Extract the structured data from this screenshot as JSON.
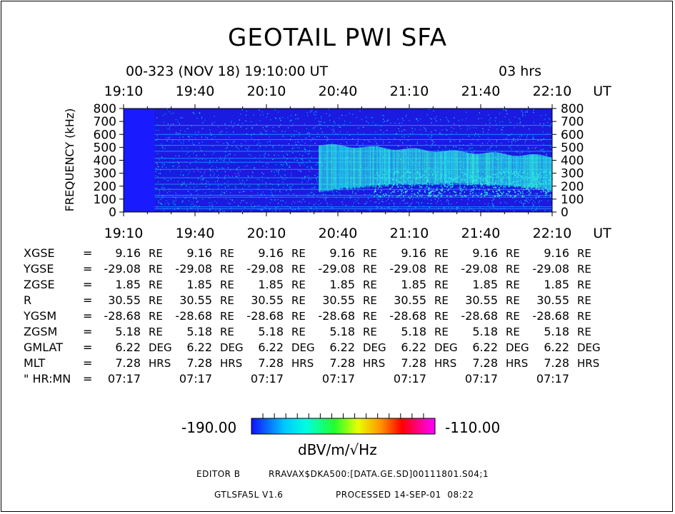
{
  "title": "GEOTAIL PWI SFA",
  "header": {
    "date": "00-323 (NOV 18) 19:10:00 UT",
    "duration": "03 hrs"
  },
  "chart_data": {
    "type": "heatmap",
    "title": "GEOTAIL PWI SFA",
    "ylabel": "FREQUENCY (kHz)",
    "x_unit": "UT",
    "x_ticks": [
      "19:10",
      "19:40",
      "20:10",
      "20:40",
      "21:10",
      "21:40",
      "22:10"
    ],
    "y_ticks": [
      0,
      100,
      200,
      300,
      400,
      500,
      600,
      700,
      800
    ],
    "ylim": [
      0,
      800
    ],
    "colorbar": {
      "min": "-190.00",
      "max": "-110.00",
      "unit": "dBV/m/√Hz"
    },
    "features": [
      {
        "name": "data gap",
        "start": "19:10",
        "end": "19:23"
      },
      {
        "name": "emission band",
        "start": "20:32",
        "end": "22:10",
        "freq_khz": [
          150,
          500
        ]
      }
    ]
  },
  "orbit": [
    {
      "label": "XGSE",
      "values": [
        "9.16",
        "9.16",
        "9.16",
        "9.16",
        "9.16",
        "9.16",
        "9.16"
      ],
      "unit": "RE"
    },
    {
      "label": "YGSE",
      "values": [
        "-29.08",
        "-29.08",
        "-29.08",
        "-29.08",
        "-29.08",
        "-29.08",
        "-29.08"
      ],
      "unit": "RE"
    },
    {
      "label": "ZGSE",
      "values": [
        "1.85",
        "1.85",
        "1.85",
        "1.85",
        "1.85",
        "1.85",
        "1.85"
      ],
      "unit": "RE"
    },
    {
      "label": "R",
      "values": [
        "30.55",
        "30.55",
        "30.55",
        "30.55",
        "30.55",
        "30.55",
        "30.55"
      ],
      "unit": "RE"
    },
    {
      "label": "YGSM",
      "values": [
        "-28.68",
        "-28.68",
        "-28.68",
        "-28.68",
        "-28.68",
        "-28.68",
        "-28.68"
      ],
      "unit": "RE"
    },
    {
      "label": "ZGSM",
      "values": [
        "5.18",
        "5.18",
        "5.18",
        "5.18",
        "5.18",
        "5.18",
        "5.18"
      ],
      "unit": "RE"
    },
    {
      "label": "GMLAT",
      "values": [
        "6.22",
        "6.22",
        "6.22",
        "6.22",
        "6.22",
        "6.22",
        "6.22"
      ],
      "unit": "DEG"
    },
    {
      "label": "MLT",
      "values": [
        "7.28",
        "7.28",
        "7.28",
        "7.28",
        "7.28",
        "7.28",
        "7.28"
      ],
      "unit": "HRS"
    },
    {
      "label": "\" HR:MN",
      "values": [
        "07:17",
        "07:17",
        "07:17",
        "07:17",
        "07:17",
        "07:17",
        "07:17"
      ],
      "unit": ""
    }
  ],
  "footer": {
    "editor": "EDITOR B",
    "path": "RRAVAX$DKA500:[DATA.GE.SD]00111801.S04;1",
    "version": "GTLSFA5L V1.6",
    "processed": "PROCESSED 14-SEP-01  08:22"
  },
  "colors": {
    "background": "#1a1ae0",
    "band": "#33ffd8",
    "speckle": "#00a6ff"
  }
}
